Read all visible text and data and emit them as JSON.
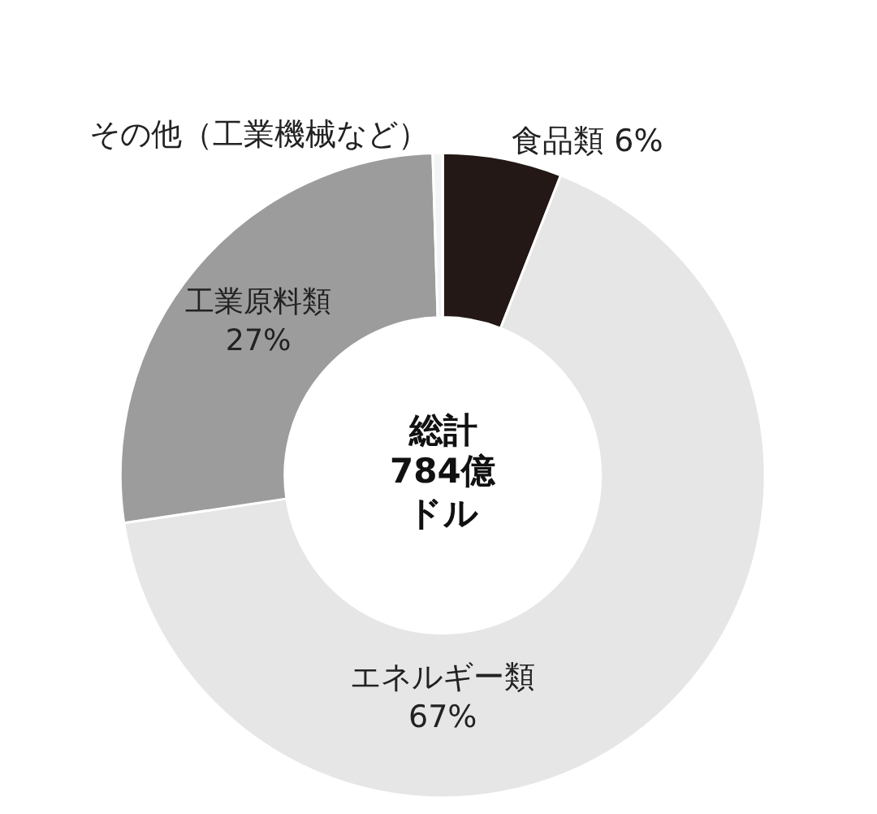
{
  "chart_data": {
    "type": "donut",
    "categories": [
      "食品類",
      "エネルギー類",
      "工業原料類",
      "その他（工業機械など）"
    ],
    "values": [
      6,
      67,
      27,
      0.5
    ],
    "value_labels": [
      "6%",
      "67%",
      "27%",
      null
    ],
    "colors": [
      "#231815",
      "#e6e6e6",
      "#9c9c9c",
      "#f4f4f4"
    ],
    "annotations": [
      "総計",
      "784億",
      "ドル"
    ],
    "legend": false
  }
}
